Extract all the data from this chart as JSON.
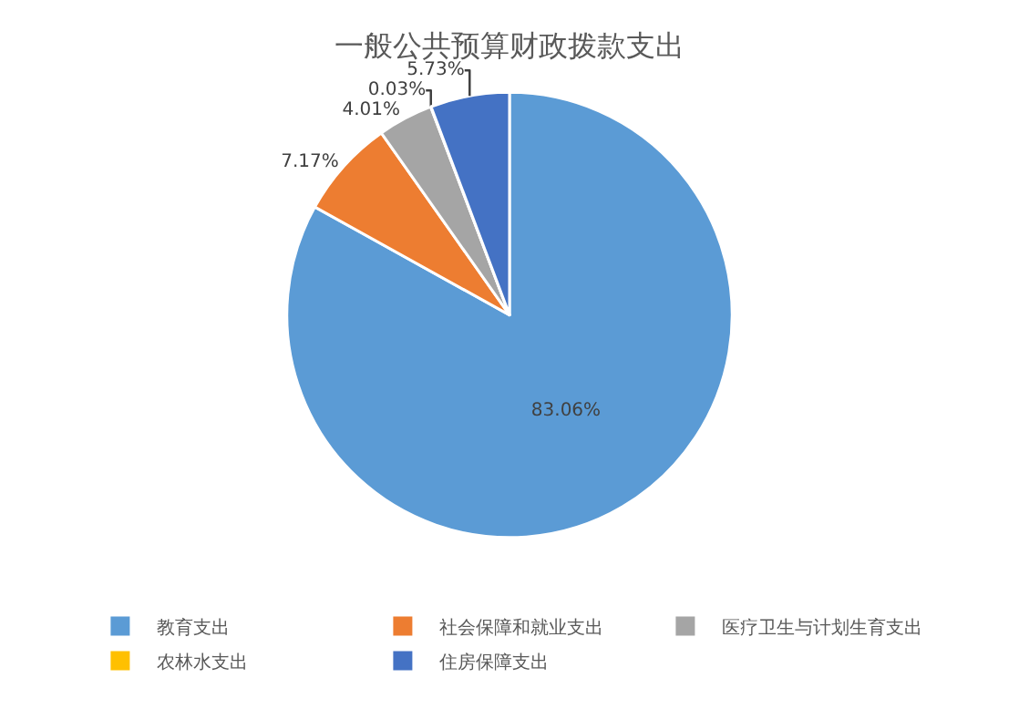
{
  "chart_data": {
    "type": "pie",
    "title": "一般公共预算财政拨款支出",
    "categories": [
      "教育支出",
      "社会保障和就业支出",
      "医疗卫生与计划生育支出",
      "农林水支出",
      "住房保障支出"
    ],
    "values": [
      83.06,
      7.17,
      4.01,
      0.03,
      5.73
    ],
    "value_labels": [
      "83.06%",
      "7.17%",
      "4.01%",
      "0.03%",
      "5.73%"
    ],
    "colors": [
      "#5b9bd5",
      "#ed7d31",
      "#a5a5a5",
      "#ffc000",
      "#4472c4"
    ],
    "legend": "bottom"
  }
}
